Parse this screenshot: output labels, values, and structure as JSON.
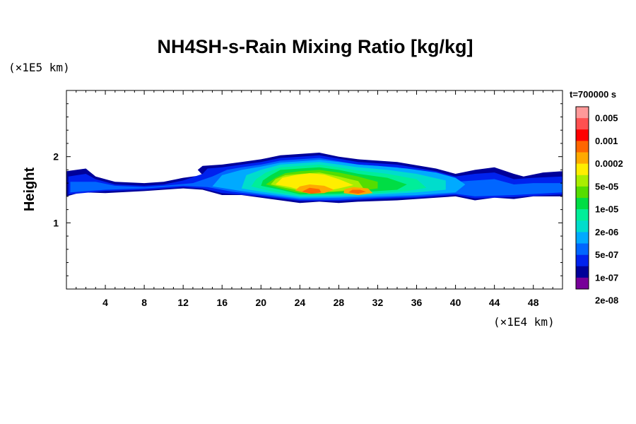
{
  "chart_data": {
    "type": "heatmap",
    "title": "NH4SH-s-Rain Mixing Ratio [kg/kg]",
    "xlabel": "",
    "ylabel": "Height",
    "x_unit": "(×1E4 km)",
    "y_unit": "(×1E5 km)",
    "time_label": "t=700000 s",
    "xlim": [
      0,
      51
    ],
    "ylim": [
      0,
      3
    ],
    "x_ticks": [
      4,
      8,
      12,
      16,
      20,
      24,
      28,
      32,
      36,
      40,
      44,
      48
    ],
    "y_ticks": [
      1,
      2
    ],
    "colorbar": {
      "labels": [
        "0.005",
        "0.001",
        "0.0002",
        "5e-05",
        "1e-05",
        "2e-06",
        "5e-07",
        "1e-07",
        "2e-08"
      ],
      "colors": [
        "#ff9999",
        "#ff5050",
        "#ff0000",
        "#ff6600",
        "#ffaa00",
        "#ffee00",
        "#aaee00",
        "#55dd00",
        "#00dd44",
        "#00ee99",
        "#00ddcc",
        "#00aaff",
        "#0066ff",
        "#0022ee",
        "#000099",
        "#770099"
      ]
    },
    "regions": [
      {
        "level": 1,
        "points": [
          [
            0,
            1.4
          ],
          [
            1.5,
            1.46
          ],
          [
            4,
            1.45
          ],
          [
            8,
            1.48
          ],
          [
            12,
            1.52
          ],
          [
            14,
            1.5
          ],
          [
            16,
            1.42
          ],
          [
            18,
            1.42
          ],
          [
            20,
            1.38
          ],
          [
            22,
            1.34
          ],
          [
            24,
            1.3
          ],
          [
            26,
            1.32
          ],
          [
            28,
            1.3
          ],
          [
            30,
            1.32
          ],
          [
            34,
            1.34
          ],
          [
            38,
            1.38
          ],
          [
            40,
            1.4
          ],
          [
            42,
            1.34
          ],
          [
            44,
            1.38
          ],
          [
            46,
            1.36
          ],
          [
            48,
            1.4
          ],
          [
            51,
            1.4
          ],
          [
            51,
            1.78
          ],
          [
            49,
            1.76
          ],
          [
            47,
            1.7
          ],
          [
            46,
            1.74
          ],
          [
            44,
            1.84
          ],
          [
            42,
            1.8
          ],
          [
            40,
            1.74
          ],
          [
            38,
            1.82
          ],
          [
            34,
            1.92
          ],
          [
            30,
            1.96
          ],
          [
            28,
            2.0
          ],
          [
            26,
            2.06
          ],
          [
            24,
            2.04
          ],
          [
            22,
            2.02
          ],
          [
            20,
            1.96
          ],
          [
            18,
            1.92
          ],
          [
            16,
            1.88
          ],
          [
            14,
            1.86
          ],
          [
            13.5,
            1.8
          ],
          [
            14,
            1.72
          ],
          [
            12,
            1.68
          ],
          [
            10,
            1.62
          ],
          [
            8,
            1.6
          ],
          [
            5,
            1.62
          ],
          [
            3,
            1.7
          ],
          [
            2,
            1.82
          ],
          [
            0,
            1.78
          ]
        ]
      },
      {
        "level": 2,
        "points": [
          [
            0.2,
            1.43
          ],
          [
            4,
            1.48
          ],
          [
            8,
            1.5
          ],
          [
            12,
            1.54
          ],
          [
            14,
            1.52
          ],
          [
            16,
            1.45
          ],
          [
            20,
            1.4
          ],
          [
            24,
            1.33
          ],
          [
            28,
            1.33
          ],
          [
            32,
            1.36
          ],
          [
            36,
            1.38
          ],
          [
            40,
            1.42
          ],
          [
            42,
            1.37
          ],
          [
            46,
            1.39
          ],
          [
            51,
            1.43
          ],
          [
            51,
            1.7
          ],
          [
            48,
            1.68
          ],
          [
            46,
            1.66
          ],
          [
            44,
            1.76
          ],
          [
            42,
            1.74
          ],
          [
            40,
            1.7
          ],
          [
            38,
            1.78
          ],
          [
            34,
            1.88
          ],
          [
            30,
            1.92
          ],
          [
            28,
            1.97
          ],
          [
            26,
            2.02
          ],
          [
            24,
            2.0
          ],
          [
            22,
            1.98
          ],
          [
            20,
            1.92
          ],
          [
            18,
            1.88
          ],
          [
            16,
            1.84
          ],
          [
            14.5,
            1.82
          ],
          [
            14,
            1.74
          ],
          [
            12,
            1.64
          ],
          [
            10,
            1.58
          ],
          [
            8,
            1.56
          ],
          [
            5,
            1.58
          ],
          [
            3,
            1.66
          ],
          [
            2,
            1.74
          ],
          [
            0.2,
            1.7
          ]
        ]
      },
      {
        "level": 3,
        "points": [
          [
            0.4,
            1.46
          ],
          [
            4,
            1.5
          ],
          [
            8,
            1.52
          ],
          [
            12,
            1.56
          ],
          [
            14.5,
            1.54
          ],
          [
            17,
            1.47
          ],
          [
            20,
            1.42
          ],
          [
            24,
            1.35
          ],
          [
            28,
            1.35
          ],
          [
            32,
            1.38
          ],
          [
            36,
            1.4
          ],
          [
            40,
            1.44
          ],
          [
            42,
            1.4
          ],
          [
            46,
            1.42
          ],
          [
            51,
            1.46
          ],
          [
            51,
            1.6
          ],
          [
            48,
            1.6
          ],
          [
            46,
            1.58
          ],
          [
            44,
            1.66
          ],
          [
            42,
            1.64
          ],
          [
            40,
            1.62
          ],
          [
            38,
            1.72
          ],
          [
            34,
            1.84
          ],
          [
            30,
            1.88
          ],
          [
            28,
            1.93
          ],
          [
            26,
            1.98
          ],
          [
            24,
            1.96
          ],
          [
            22,
            1.94
          ],
          [
            20,
            1.88
          ],
          [
            18,
            1.84
          ],
          [
            16.5,
            1.8
          ],
          [
            15,
            1.7
          ],
          [
            13,
            1.6
          ],
          [
            10,
            1.56
          ],
          [
            8,
            1.54
          ],
          [
            5,
            1.56
          ],
          [
            3,
            1.62
          ],
          [
            0.4,
            1.62
          ]
        ]
      },
      {
        "level": 4,
        "points": [
          [
            15,
            1.55
          ],
          [
            18,
            1.48
          ],
          [
            20,
            1.44
          ],
          [
            24,
            1.37
          ],
          [
            28,
            1.38
          ],
          [
            32,
            1.4
          ],
          [
            36,
            1.42
          ],
          [
            40,
            1.46
          ],
          [
            41,
            1.58
          ],
          [
            40,
            1.68
          ],
          [
            38,
            1.76
          ],
          [
            35,
            1.82
          ],
          [
            32,
            1.86
          ],
          [
            30,
            1.88
          ],
          [
            28,
            1.92
          ],
          [
            26,
            1.95
          ],
          [
            24,
            1.93
          ],
          [
            22,
            1.91
          ],
          [
            20,
            1.85
          ],
          [
            18,
            1.8
          ],
          [
            16,
            1.72
          ]
        ]
      },
      {
        "level": 5,
        "points": [
          [
            18,
            1.52
          ],
          [
            20,
            1.47
          ],
          [
            24,
            1.39
          ],
          [
            28,
            1.4
          ],
          [
            32,
            1.43
          ],
          [
            36,
            1.46
          ],
          [
            39,
            1.5
          ],
          [
            39,
            1.64
          ],
          [
            36,
            1.74
          ],
          [
            33,
            1.8
          ],
          [
            30,
            1.84
          ],
          [
            28,
            1.88
          ],
          [
            26,
            1.92
          ],
          [
            24,
            1.9
          ],
          [
            22,
            1.88
          ],
          [
            20,
            1.8
          ],
          [
            18.5,
            1.72
          ]
        ]
      },
      {
        "level": 6,
        "points": [
          [
            19,
            1.55
          ],
          [
            21,
            1.48
          ],
          [
            24,
            1.41
          ],
          [
            28,
            1.42
          ],
          [
            32,
            1.45
          ],
          [
            35,
            1.48
          ],
          [
            37,
            1.53
          ],
          [
            36,
            1.66
          ],
          [
            33,
            1.74
          ],
          [
            30,
            1.79
          ],
          [
            28,
            1.84
          ],
          [
            26,
            1.88
          ],
          [
            24,
            1.86
          ],
          [
            22,
            1.84
          ],
          [
            20.5,
            1.76
          ],
          [
            19.5,
            1.66
          ]
        ]
      },
      {
        "level": 7,
        "points": [
          [
            20,
            1.56
          ],
          [
            22,
            1.5
          ],
          [
            24,
            1.43
          ],
          [
            28,
            1.44
          ],
          [
            31,
            1.47
          ],
          [
            34,
            1.5
          ],
          [
            35,
            1.58
          ],
          [
            33,
            1.68
          ],
          [
            30,
            1.74
          ],
          [
            28,
            1.8
          ],
          [
            26,
            1.84
          ],
          [
            24,
            1.82
          ],
          [
            22,
            1.8
          ],
          [
            21,
            1.72
          ],
          [
            20.2,
            1.64
          ]
        ]
      },
      {
        "level": 8,
        "points": [
          [
            20.5,
            1.58
          ],
          [
            22,
            1.52
          ],
          [
            24,
            1.45
          ],
          [
            27,
            1.46
          ],
          [
            30,
            1.48
          ],
          [
            32,
            1.52
          ],
          [
            32,
            1.62
          ],
          [
            30,
            1.7
          ],
          [
            28,
            1.76
          ],
          [
            26,
            1.8
          ],
          [
            24,
            1.78
          ],
          [
            22.5,
            1.75
          ],
          [
            21.5,
            1.68
          ]
        ]
      },
      {
        "level": 9,
        "points": [
          [
            21,
            1.58
          ],
          [
            22.5,
            1.53
          ],
          [
            24.5,
            1.47
          ],
          [
            27,
            1.47
          ],
          [
            29,
            1.49
          ],
          [
            30.5,
            1.53
          ],
          [
            30,
            1.63
          ],
          [
            28,
            1.7
          ],
          [
            26,
            1.76
          ],
          [
            24,
            1.74
          ],
          [
            22.5,
            1.72
          ],
          [
            21.5,
            1.66
          ]
        ]
      },
      {
        "level": 10,
        "points": [
          [
            21.5,
            1.58
          ],
          [
            23,
            1.54
          ],
          [
            24.5,
            1.48
          ],
          [
            26.5,
            1.48
          ],
          [
            28,
            1.52
          ],
          [
            29.5,
            1.57
          ],
          [
            28,
            1.66
          ],
          [
            26.5,
            1.73
          ],
          [
            25,
            1.75
          ],
          [
            23.5,
            1.72
          ],
          [
            22.2,
            1.68
          ]
        ]
      },
      {
        "level": 11,
        "points": [
          [
            23.5,
            1.49
          ],
          [
            25,
            1.44
          ],
          [
            26.5,
            1.45
          ],
          [
            27.5,
            1.5
          ],
          [
            26.5,
            1.56
          ],
          [
            25,
            1.58
          ],
          [
            24,
            1.55
          ]
        ]
      },
      {
        "level": 11,
        "points": [
          [
            28.5,
            1.45
          ],
          [
            30,
            1.42
          ],
          [
            31.5,
            1.45
          ],
          [
            31,
            1.52
          ],
          [
            29.5,
            1.54
          ],
          [
            28.6,
            1.51
          ]
        ]
      },
      {
        "level": 12,
        "points": [
          [
            24.2,
            1.47
          ],
          [
            25.2,
            1.44
          ],
          [
            26.2,
            1.46
          ],
          [
            26,
            1.51
          ],
          [
            25,
            1.53
          ]
        ]
      },
      {
        "level": 12,
        "points": [
          [
            29,
            1.46
          ],
          [
            30,
            1.44
          ],
          [
            30.8,
            1.47
          ],
          [
            30.2,
            1.5
          ],
          [
            29.4,
            1.5
          ]
        ]
      },
      {
        "level": 3,
        "points": [
          [
            40.5,
            1.46
          ],
          [
            42,
            1.42
          ],
          [
            44,
            1.44
          ],
          [
            46,
            1.45
          ],
          [
            49,
            1.48
          ],
          [
            51,
            1.5
          ],
          [
            51,
            1.56
          ],
          [
            49,
            1.58
          ],
          [
            46,
            1.56
          ],
          [
            44,
            1.6
          ],
          [
            42,
            1.58
          ]
        ]
      }
    ]
  }
}
